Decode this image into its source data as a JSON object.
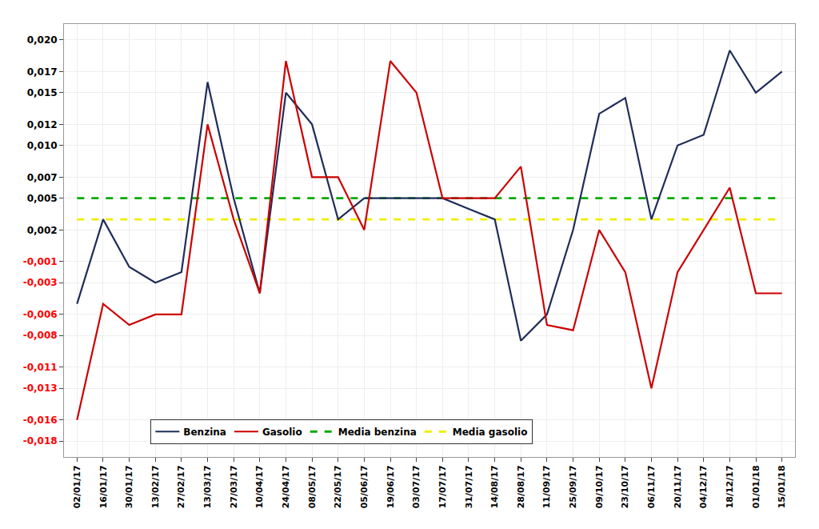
{
  "chart_data": {
    "type": "line",
    "categories": [
      "02/01/17",
      "16/01/17",
      "30/01/17",
      "13/02/17",
      "27/02/17",
      "13/03/17",
      "27/03/17",
      "10/04/17",
      "24/04/17",
      "08/05/17",
      "22/05/17",
      "05/06/17",
      "19/06/17",
      "03/07/17",
      "17/07/17",
      "31/07/17",
      "14/08/17",
      "28/08/17",
      "11/09/17",
      "25/09/17",
      "09/10/17",
      "23/10/17",
      "06/11/17",
      "20/11/17",
      "04/12/17",
      "18/12/17",
      "01/01/18",
      "15/01/18"
    ],
    "series": [
      {
        "name": "Benzina",
        "color": "#1F2D5A",
        "line_style": "solid",
        "values": [
          -0.005,
          0.003,
          -0.0015,
          -0.003,
          -0.002,
          0.016,
          0.005,
          -0.004,
          0.015,
          0.012,
          0.003,
          0.005,
          0.005,
          0.005,
          0.005,
          0.004,
          0.003,
          -0.0085,
          -0.006,
          0.002,
          0.013,
          0.0145,
          0.003,
          0.01,
          0.011,
          0.019,
          0.015,
          0.017
        ]
      },
      {
        "name": "Gasolio",
        "color": "#CC0000",
        "line_style": "solid",
        "values": [
          -0.016,
          -0.005,
          -0.007,
          -0.006,
          -0.006,
          0.012,
          0.003,
          -0.004,
          0.018,
          0.007,
          0.007,
          0.002,
          0.018,
          0.015,
          0.005,
          0.005,
          0.005,
          0.008,
          -0.007,
          -0.0075,
          0.002,
          -0.002,
          -0.013,
          -0.002,
          0.002,
          0.006,
          -0.004,
          -0.004
        ]
      },
      {
        "name": "Media benzina",
        "color": "#00AA00",
        "line_style": "dashed",
        "values": [
          0.005,
          0.005,
          0.005,
          0.005,
          0.005,
          0.005,
          0.005,
          0.005,
          0.005,
          0.005,
          0.005,
          0.005,
          0.005,
          0.005,
          0.005,
          0.005,
          0.005,
          0.005,
          0.005,
          0.005,
          0.005,
          0.005,
          0.005,
          0.005,
          0.005,
          0.005,
          0.005,
          0.005
        ]
      },
      {
        "name": "Media gasolio",
        "color": "#EEEE00",
        "line_style": "dashed",
        "values": [
          0.003,
          0.003,
          0.003,
          0.003,
          0.003,
          0.003,
          0.003,
          0.003,
          0.003,
          0.003,
          0.003,
          0.003,
          0.003,
          0.003,
          0.003,
          0.003,
          0.003,
          0.003,
          0.003,
          0.003,
          0.003,
          0.003,
          0.003,
          0.003,
          0.003,
          0.003,
          0.003,
          0.003
        ]
      }
    ],
    "ylim": [
      -0.0195,
      0.0215
    ],
    "yticks": [
      {
        "value": 0.02,
        "label": "0,020"
      },
      {
        "value": 0.017,
        "label": "0,017"
      },
      {
        "value": 0.015,
        "label": "0,015"
      },
      {
        "value": 0.012,
        "label": "0,012"
      },
      {
        "value": 0.01,
        "label": "0,010"
      },
      {
        "value": 0.007,
        "label": "0,007"
      },
      {
        "value": 0.005,
        "label": "0,005"
      },
      {
        "value": 0.002,
        "label": "0,002"
      },
      {
        "value": -0.001,
        "label": "-0,001"
      },
      {
        "value": -0.003,
        "label": "-0,003"
      },
      {
        "value": -0.006,
        "label": "-0,006"
      },
      {
        "value": -0.008,
        "label": "-0,008"
      },
      {
        "value": -0.011,
        "label": "-0,011"
      },
      {
        "value": -0.013,
        "label": "-0,013"
      },
      {
        "value": -0.016,
        "label": "-0,016"
      },
      {
        "value": -0.018,
        "label": "-0,018"
      }
    ],
    "grid": true,
    "legend": "bottom"
  }
}
